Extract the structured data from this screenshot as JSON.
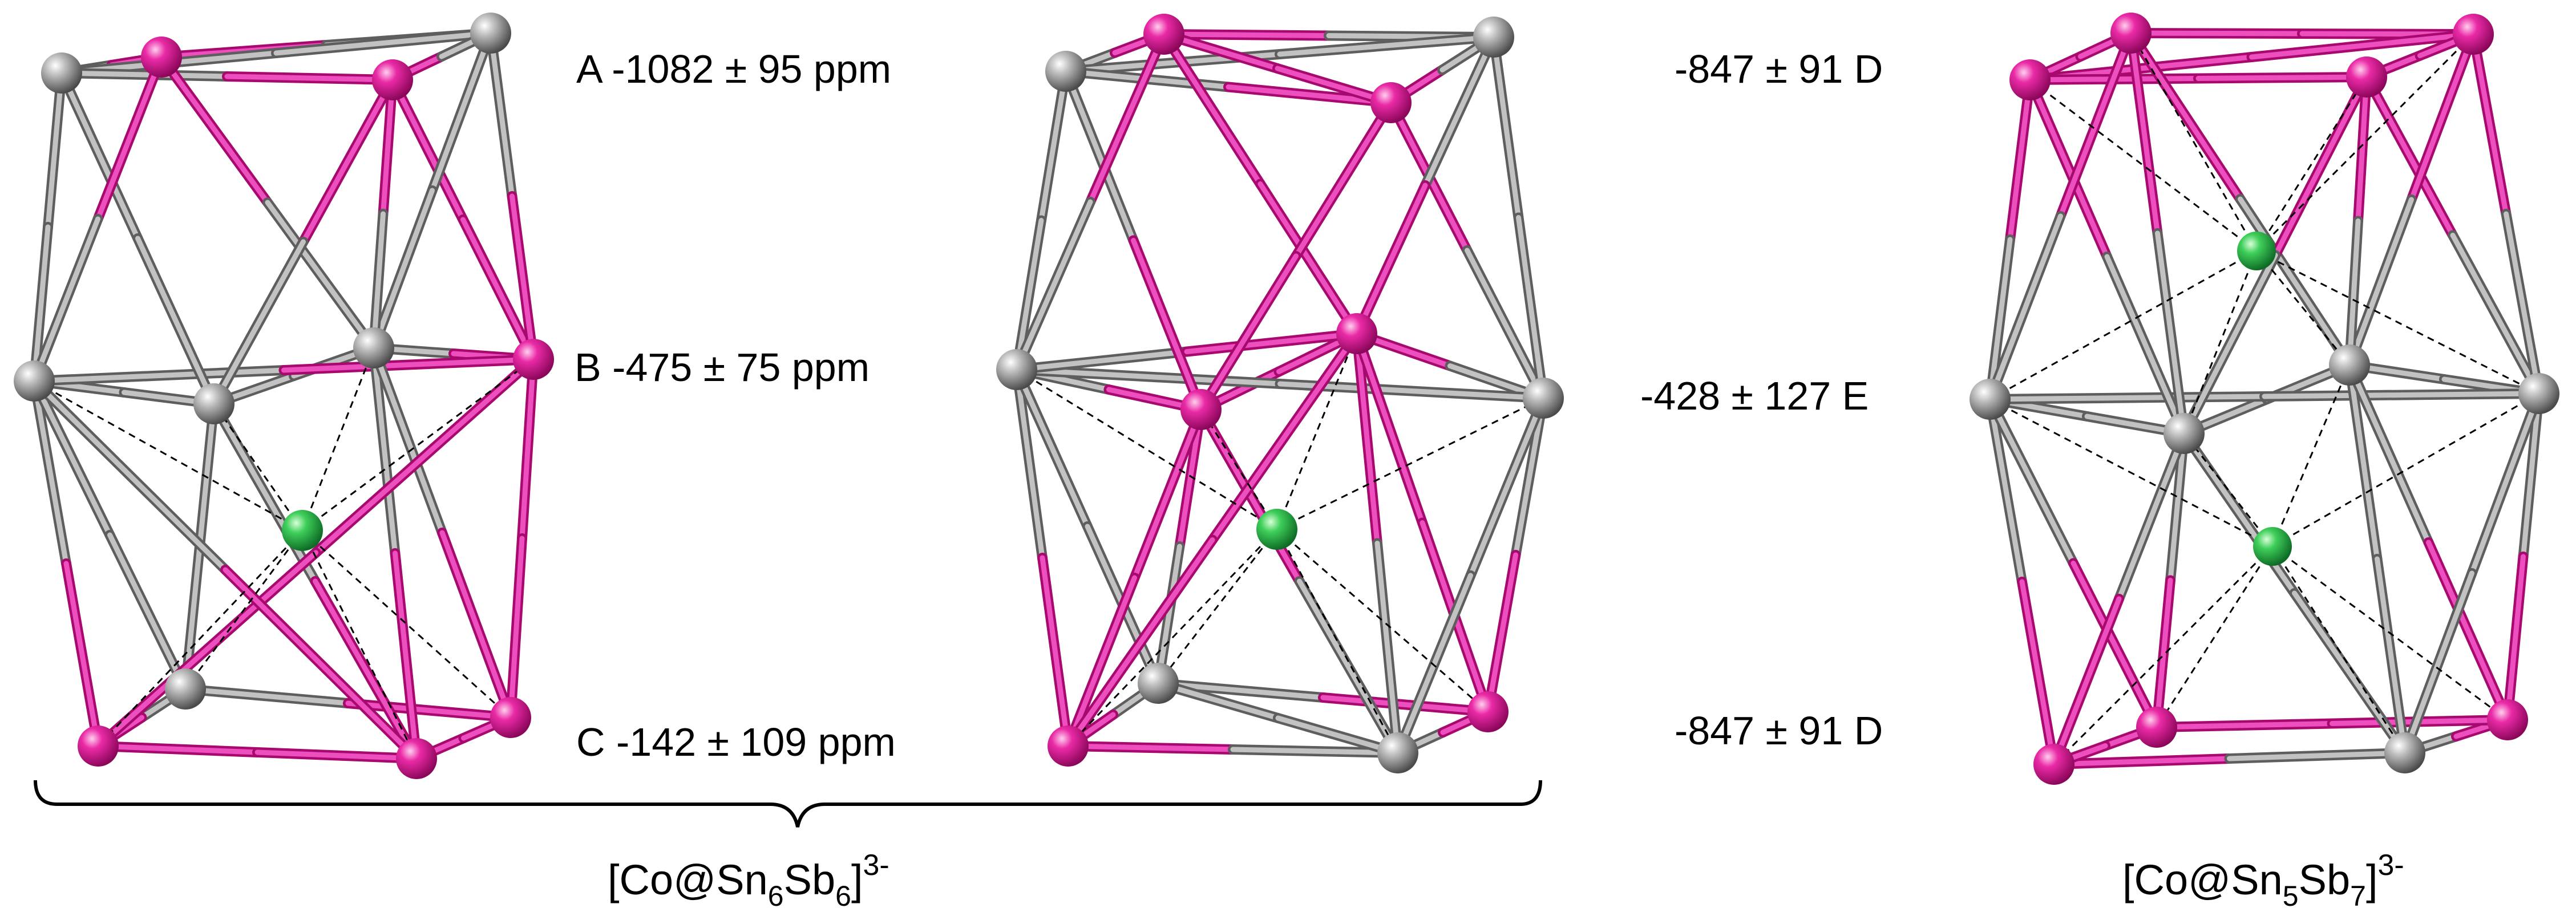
{
  "labels": {
    "a": "A -1082 ± 95 ppm",
    "b": "B -475 ± 75 ppm",
    "c": "C -142 ± 109 ppm",
    "d_top": "-847 ± 91 D",
    "e": "-428 ± 127 E",
    "d_bottom": "-847 ± 91 D"
  },
  "formula_left": {
    "open": "[Co@Sn",
    "sub1": "6",
    "mid": "Sb",
    "sub2": "6",
    "close": "]",
    "charge": "3-"
  },
  "formula_right": {
    "open": "[Co@Sn",
    "sub1": "5",
    "mid": "Sb",
    "sub2": "7",
    "close": "]",
    "charge": "3-"
  },
  "colors": {
    "sn_atom": "#8e8e8e",
    "sb_atom": "#e0179a",
    "co_atom": "#22b04a",
    "sn_bond_light": "#c2c2c2",
    "sn_bond_dark": "#5e5e5e",
    "sb_bond_light": "#ee4fbe",
    "sb_bond_dark": "#a8096e",
    "dashed_line": "#000000"
  }
}
